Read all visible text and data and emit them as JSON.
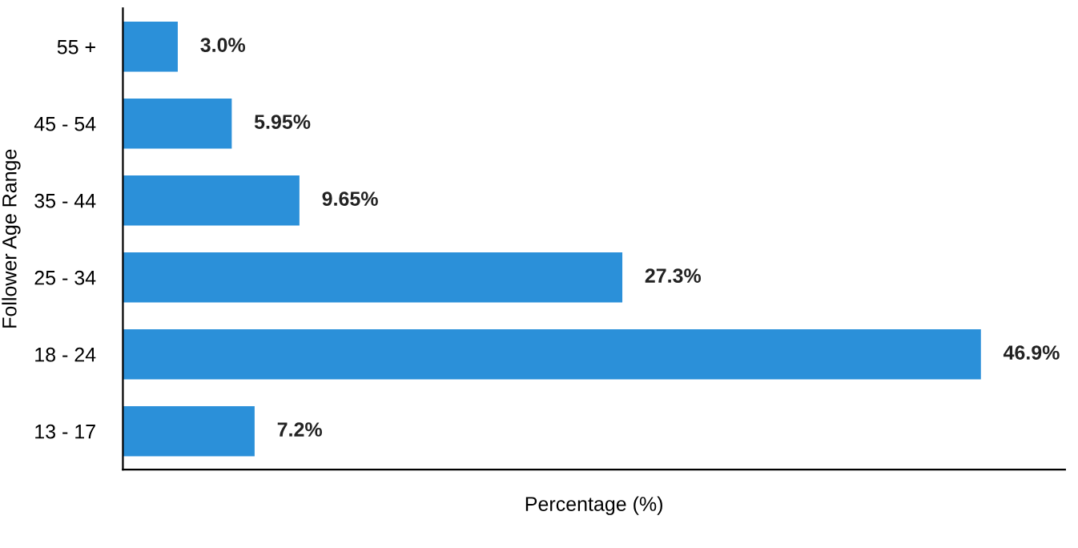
{
  "chart_data": {
    "type": "bar",
    "orientation": "horizontal",
    "xlabel": "Percentage (%)",
    "ylabel": "Follower Age Range",
    "categories": [
      "55 +",
      "45 - 54",
      "35 - 44",
      "25 - 34",
      "18 - 24",
      "13 - 17"
    ],
    "values": [
      3.0,
      5.95,
      9.65,
      27.3,
      46.9,
      7.2
    ],
    "value_labels": [
      "3.0%",
      "5.95%",
      "9.65%",
      "27.3%",
      "46.9%",
      "7.2%"
    ],
    "color": "#2b90d9",
    "xlim": [
      0,
      51.5
    ],
    "tick_labels": "y",
    "grid": false,
    "legend": false
  }
}
